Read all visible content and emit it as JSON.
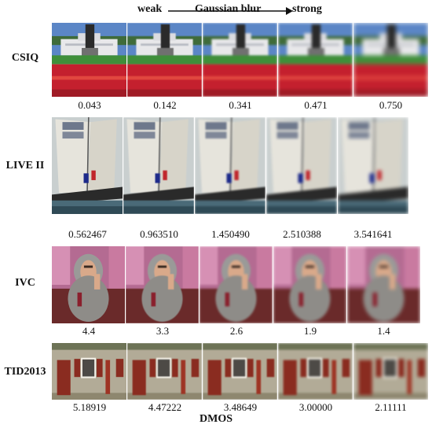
{
  "header": {
    "weak": "weak",
    "title": "Gaussian blur",
    "strong": "strong"
  },
  "rows": [
    {
      "label": "CSIQ",
      "scene": "white-house-garden",
      "values": [
        "0.043",
        "0.142",
        "0.341",
        "0.471",
        "0.750"
      ],
      "blur": [
        0,
        0.6,
        1.2,
        1.9,
        2.8
      ]
    },
    {
      "label": "LIVE II",
      "scene": "sailboat",
      "values": [
        "0.562467",
        "0.963510",
        "1.450490",
        "2.510388",
        "3.541641"
      ],
      "blur": [
        0,
        0.5,
        1.0,
        1.6,
        2.3
      ]
    },
    {
      "label": "IVC",
      "scene": "woman-with-scarf",
      "values": [
        "4.4",
        "3.3",
        "2.6",
        "1.9",
        "1.4"
      ],
      "blur": [
        0,
        0.6,
        1.2,
        1.8,
        2.5
      ]
    },
    {
      "label": "TID2013",
      "scene": "stone-house",
      "values": [
        "5.18919",
        "4.47222",
        "3.48649",
        "3.00000",
        "2.11111"
      ],
      "blur": [
        0,
        0.4,
        0.9,
        1.4,
        2.0
      ]
    }
  ],
  "footer": {
    "dmos": "DMOS"
  }
}
